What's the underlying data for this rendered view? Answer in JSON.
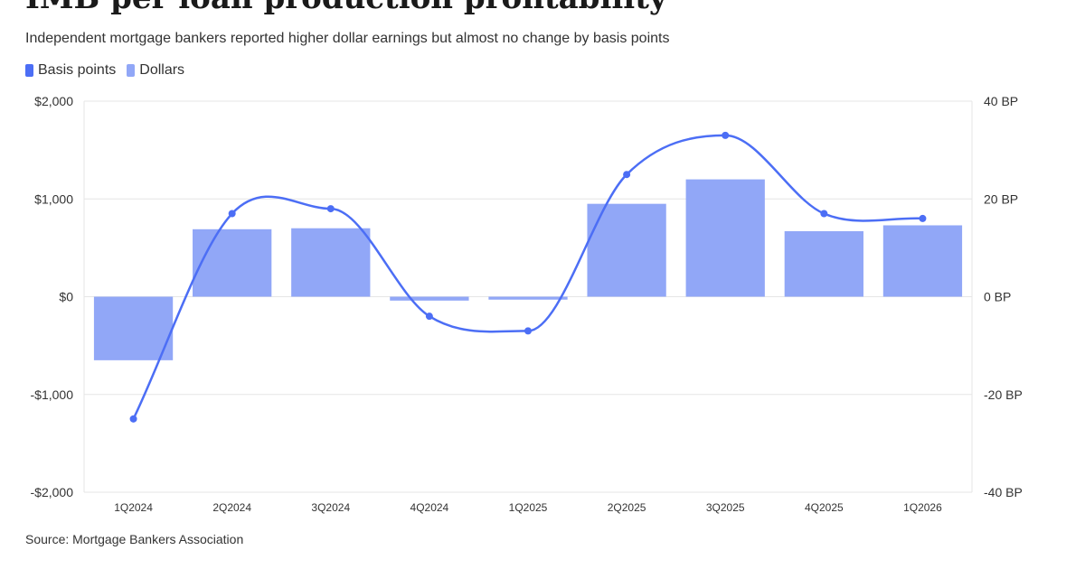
{
  "title": "IMB per loan production profitability",
  "subtitle": "Independent mortgage bankers reported higher dollar earnings but almost no change by basis points",
  "source": "Source: Mortgage Bankers Association",
  "legend": [
    {
      "label": "Basis points",
      "color": "#4c6ef5"
    },
    {
      "label": "Dollars",
      "color": "#91a7f7"
    }
  ],
  "chart_data": {
    "type": "bar",
    "categories": [
      "1Q2024",
      "2Q2024",
      "3Q2024",
      "4Q2024",
      "1Q2025",
      "2Q2025",
      "3Q2025",
      "4Q2025",
      "1Q2026"
    ],
    "series": [
      {
        "name": "Dollars",
        "type": "bar",
        "axis": "left",
        "color": "#91a7f7",
        "values": [
          -650,
          690,
          700,
          -40,
          -30,
          950,
          1200,
          670,
          730
        ]
      },
      {
        "name": "Basis points",
        "type": "line",
        "axis": "right",
        "color": "#4c6ef5",
        "values": [
          -25,
          17,
          18,
          -4,
          -7,
          25,
          33,
          17,
          16
        ]
      }
    ],
    "left_axis": {
      "ylim": [
        -2000,
        2000
      ],
      "ticks": [
        "$2,000",
        "$1,000",
        "$0",
        "-$1,000",
        "-$2,000"
      ]
    },
    "right_axis": {
      "ylim": [
        -40,
        40
      ],
      "ticks": [
        "40 BP",
        "20 BP",
        "0 BP",
        "-20 BP",
        "-40 BP"
      ]
    },
    "grid": true,
    "legend_position": "top-left"
  }
}
